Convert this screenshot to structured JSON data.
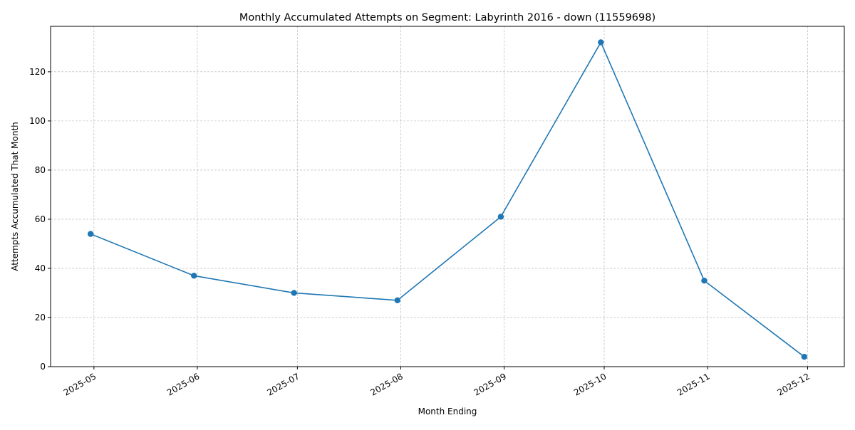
{
  "chart_data": {
    "type": "line",
    "title": "Monthly Accumulated Attempts on Segment: Labyrinth 2016 - down (11559698)",
    "xlabel": "Month Ending",
    "ylabel": "Attempts Accumulated That Month",
    "x": [
      "2025-04-30",
      "2025-05-31",
      "2025-06-30",
      "2025-07-31",
      "2025-08-31",
      "2025-09-30",
      "2025-10-31",
      "2025-11-30"
    ],
    "series": [
      {
        "values": [
          54,
          37,
          30,
          27,
          61,
          132,
          35,
          4
        ]
      }
    ],
    "x_ticks": [
      "2025-05",
      "2025-06",
      "2025-07",
      "2025-08",
      "2025-09",
      "2025-10",
      "2025-11",
      "2025-12"
    ],
    "x_tick_dates": [
      "2025-05-01",
      "2025-06-01",
      "2025-07-01",
      "2025-08-01",
      "2025-09-01",
      "2025-10-01",
      "2025-11-01",
      "2025-12-01"
    ],
    "y_ticks": [
      0,
      20,
      40,
      60,
      80,
      100,
      120
    ],
    "xlim": [
      "2025-04-18",
      "2025-12-12"
    ],
    "ylim": [
      0,
      138.5
    ],
    "grid": true,
    "legend": false,
    "colors": {
      "line": "#1f77b4",
      "marker": "#1f77b4"
    }
  }
}
